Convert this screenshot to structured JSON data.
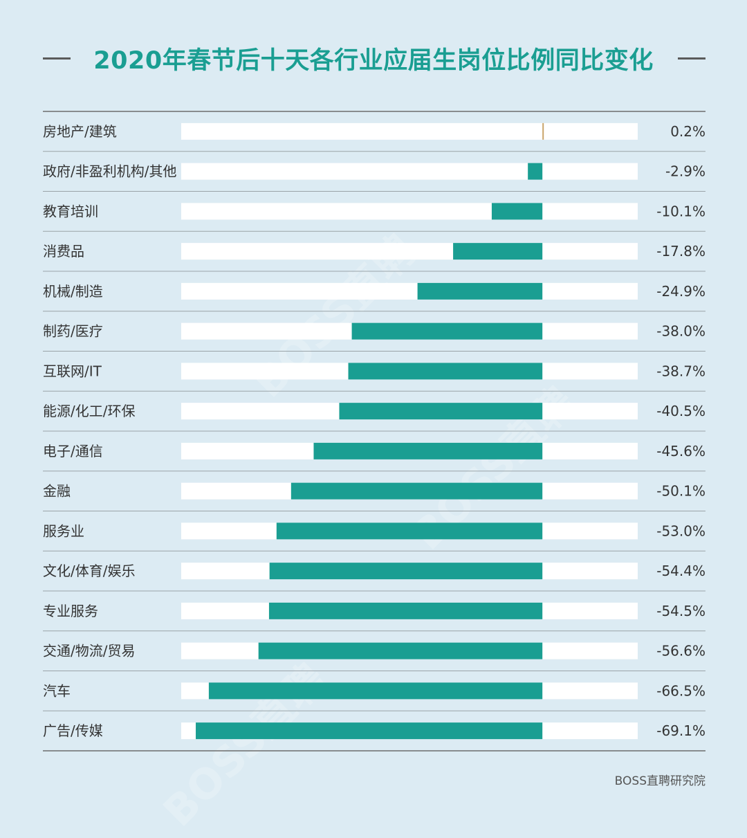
{
  "title": "2020年春节后十天各行业应届生岗位比例同比变化",
  "source": "BOSS直聘研究院",
  "watermark": "BOSS直聘",
  "colors": {
    "bar": "#1a9e92",
    "positive": "#c9a46a",
    "track": "#ffffff",
    "background": "#dcebf3",
    "title": "#1a9e92"
  },
  "chart_data": {
    "type": "bar",
    "orientation": "horizontal",
    "categories": [
      "房地产/建筑",
      "政府/非盈利机构/其他",
      "教育培训",
      "消费品",
      "机械/制造",
      "制药/医疗",
      "互联网/IT",
      "能源/化工/环保",
      "电子/通信",
      "金融",
      "服务业",
      "文化/体育/娱乐",
      "专业服务",
      "交通/物流/贸易",
      "汽车",
      "广告/传媒"
    ],
    "values": [
      0.2,
      -2.9,
      -10.1,
      -17.8,
      -24.9,
      -38.0,
      -38.7,
      -40.5,
      -45.6,
      -50.1,
      -53.0,
      -54.4,
      -54.5,
      -56.6,
      -66.5,
      -69.1
    ],
    "labels": [
      "0.2%",
      "-2.9%",
      "-10.1%",
      "-17.8%",
      "-24.9%",
      "-38.0%",
      "-38.7%",
      "-40.5%",
      "-45.6%",
      "-50.1%",
      "-53.0%",
      "-54.4%",
      "-54.5%",
      "-56.6%",
      "-66.5%",
      "-69.1%"
    ],
    "unit": "%",
    "xlim": [
      -72,
      19
    ],
    "grid": false,
    "legend": "none"
  }
}
